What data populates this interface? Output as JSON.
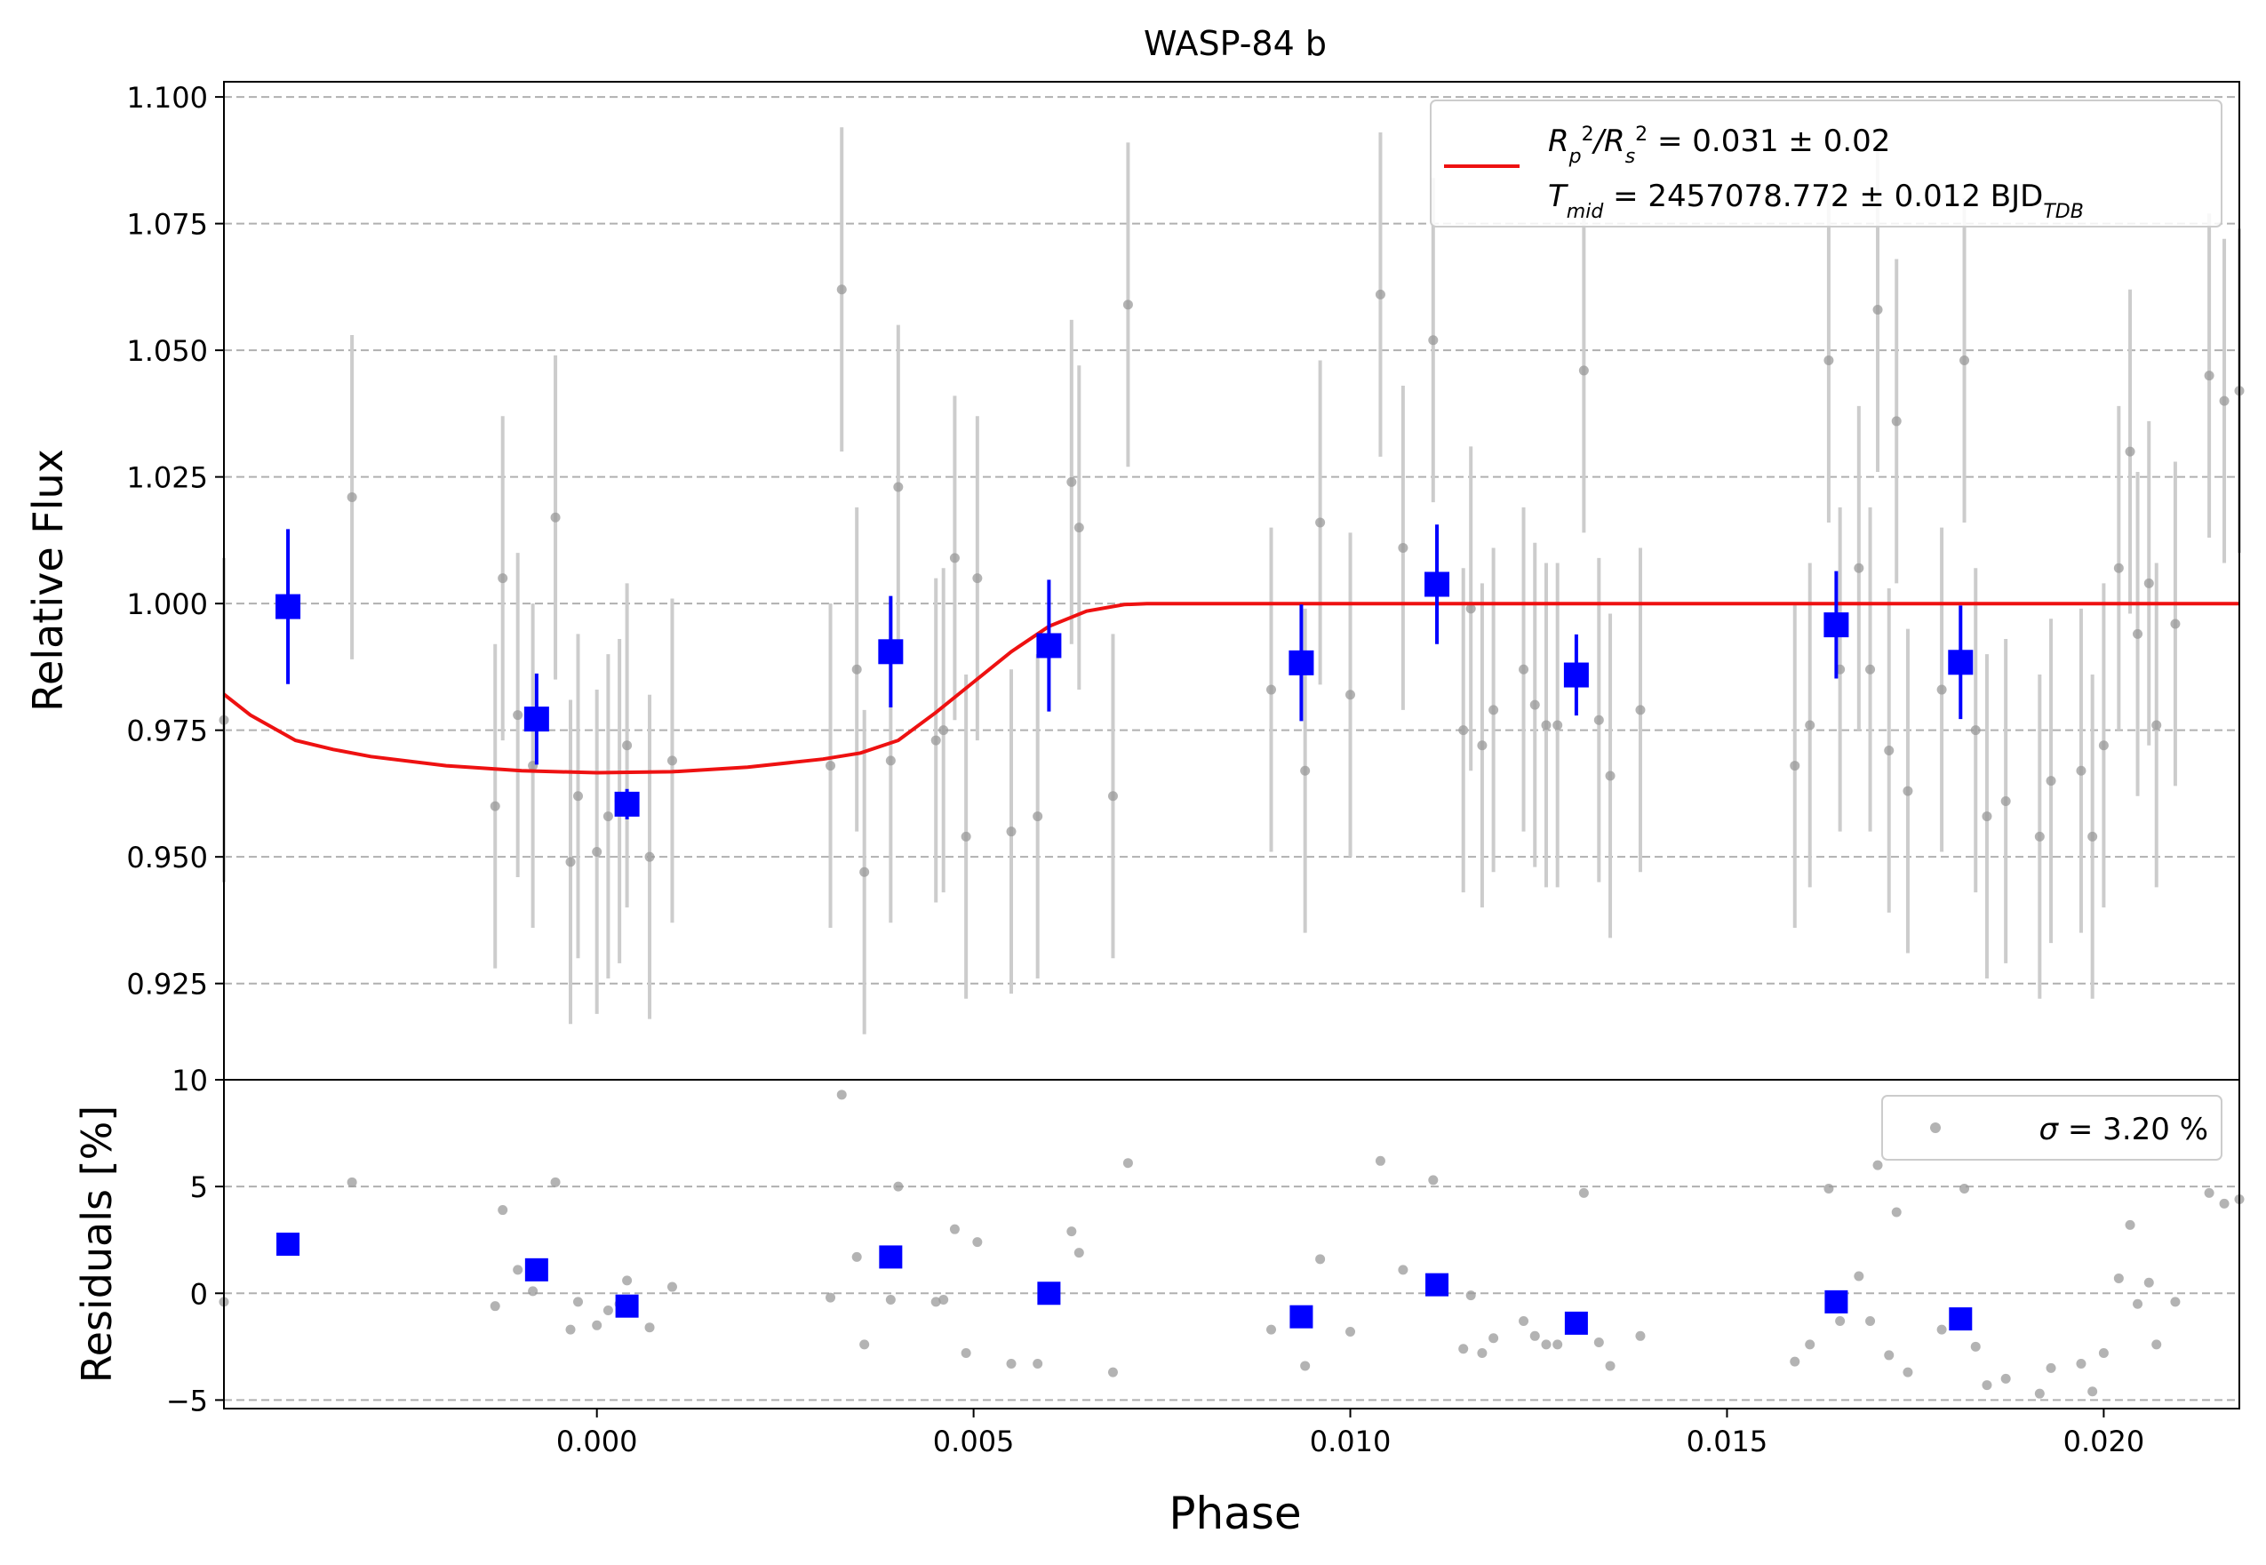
{
  "chart_data": {
    "type": "scatter",
    "title": "WASP-84 b",
    "xlabel": "Phase",
    "ylabel_top": "Relative Flux",
    "ylabel_bottom": "Residuals [%]",
    "xlim": [
      -0.00495,
      0.0218
    ],
    "ylim_top": [
      0.906,
      1.103
    ],
    "ylim_bottom": [
      -5.4,
      10
    ],
    "x_ticks": [
      0.0,
      0.005,
      0.01,
      0.015,
      0.02
    ],
    "x_tick_labels": [
      "0.000",
      "0.005",
      "0.010",
      "0.015",
      "0.020"
    ],
    "y_ticks_top": [
      0.925,
      0.95,
      0.975,
      1.0,
      1.025,
      1.05,
      1.075,
      1.1
    ],
    "y_tick_labels_top": [
      "0.925",
      "0.950",
      "0.975",
      "1.000",
      "1.025",
      "1.050",
      "1.075",
      "1.100"
    ],
    "y_ticks_bottom": [
      -5,
      0,
      5,
      10
    ],
    "y_tick_labels_bottom": [
      "−5",
      "0",
      "5",
      "10"
    ],
    "grid": "horizontal dashed",
    "legend_top": {
      "placement": "top-right",
      "line1": {
        "prefix": "R",
        "sub1": "p",
        "sup1": "2",
        "mid": "/R",
        "sub2": "s",
        "sup2": "2",
        "value": " = 0.031 ± 0.02"
      },
      "line2": {
        "prefix": "T",
        "sub": "mid",
        "value": " = 2457078.772 ± 0.012 BJD",
        "unit_sub": "TDB"
      }
    },
    "legend_bottom": {
      "placement": "top-right",
      "symbol": "σ",
      "text": " = 3.20 %"
    },
    "colors": {
      "model": "#ee1111",
      "binned": "#0000ff",
      "raw": "#999999",
      "errorbar": "#cccccc",
      "grid": "#b0b0b0"
    },
    "model_curve": {
      "x": [
        -0.00495,
        -0.0046,
        -0.004,
        -0.0035,
        -0.003,
        -0.002,
        -0.001,
        0.0,
        0.001,
        0.002,
        0.003,
        0.0035,
        0.004,
        0.0045,
        0.005,
        0.0055,
        0.006,
        0.0065,
        0.007,
        0.0073,
        0.008,
        0.01,
        0.015,
        0.0218
      ],
      "y": [
        0.9821,
        0.978,
        0.973,
        0.9712,
        0.9698,
        0.968,
        0.967,
        0.9666,
        0.9668,
        0.9677,
        0.9693,
        0.9705,
        0.973,
        0.9785,
        0.9845,
        0.9905,
        0.9955,
        0.9985,
        0.9998,
        1.0,
        1.0,
        1.0,
        1.0,
        1.0
      ]
    },
    "raw_points": [
      {
        "x": -0.00495,
        "y": 0.977,
        "err": 0.032,
        "res": -0.4
      },
      {
        "x": -0.00325,
        "y": 1.021,
        "err": 0.032,
        "res": 5.2
      },
      {
        "x": -0.00135,
        "y": 0.96,
        "err": 0.032,
        "res": -0.6
      },
      {
        "x": -0.00125,
        "y": 1.005,
        "err": 0.032,
        "res": 3.9
      },
      {
        "x": -0.00105,
        "y": 0.978,
        "err": 0.032,
        "res": 1.1
      },
      {
        "x": -0.00085,
        "y": 0.968,
        "err": 0.032,
        "res": 0.1
      },
      {
        "x": -0.00055,
        "y": 1.017,
        "err": 0.032,
        "res": 5.2
      },
      {
        "x": -0.00035,
        "y": 0.949,
        "err": 0.032,
        "res": -1.7
      },
      {
        "x": -0.00025,
        "y": 0.962,
        "err": 0.032,
        "res": -0.4
      },
      {
        "x": 0.0,
        "y": 0.951,
        "err": 0.032,
        "res": -1.5
      },
      {
        "x": 0.00015,
        "y": 0.958,
        "err": 0.032,
        "res": -0.8
      },
      {
        "x": 0.0003,
        "y": 0.961,
        "err": 0.032,
        "res": -0.5
      },
      {
        "x": 0.0004,
        "y": 0.972,
        "err": 0.032,
        "res": 0.6
      },
      {
        "x": 0.0007,
        "y": 0.95,
        "err": 0.032,
        "res": -1.6
      },
      {
        "x": 0.001,
        "y": 0.969,
        "err": 0.032,
        "res": 0.3
      },
      {
        "x": 0.0031,
        "y": 0.968,
        "err": 0.032,
        "res": -0.2
      },
      {
        "x": 0.00325,
        "y": 1.062,
        "err": 0.032,
        "res": 9.3
      },
      {
        "x": 0.00345,
        "y": 0.987,
        "err": 0.032,
        "res": 1.7
      },
      {
        "x": 0.00355,
        "y": 0.947,
        "err": 0.032,
        "res": -2.4
      },
      {
        "x": 0.0039,
        "y": 0.969,
        "err": 0.032,
        "res": -0.3
      },
      {
        "x": 0.004,
        "y": 1.023,
        "err": 0.032,
        "res": 5.0
      },
      {
        "x": 0.0045,
        "y": 0.973,
        "err": 0.032,
        "res": -0.4
      },
      {
        "x": 0.0046,
        "y": 0.975,
        "err": 0.032,
        "res": -0.3
      },
      {
        "x": 0.00475,
        "y": 1.009,
        "err": 0.032,
        "res": 3.0
      },
      {
        "x": 0.0049,
        "y": 0.954,
        "err": 0.032,
        "res": -2.8
      },
      {
        "x": 0.00505,
        "y": 1.005,
        "err": 0.032,
        "res": 2.4
      },
      {
        "x": 0.0055,
        "y": 0.955,
        "err": 0.032,
        "res": -3.3
      },
      {
        "x": 0.00585,
        "y": 0.958,
        "err": 0.032,
        "res": -3.3
      },
      {
        "x": 0.0063,
        "y": 1.024,
        "err": 0.032,
        "res": 2.9
      },
      {
        "x": 0.0064,
        "y": 1.015,
        "err": 0.032,
        "res": 1.9
      },
      {
        "x": 0.00685,
        "y": 0.962,
        "err": 0.032,
        "res": -3.7
      },
      {
        "x": 0.00705,
        "y": 1.059,
        "err": 0.032,
        "res": 6.1
      },
      {
        "x": 0.00895,
        "y": 0.983,
        "err": 0.032,
        "res": -1.7
      },
      {
        "x": 0.0094,
        "y": 0.967,
        "err": 0.032,
        "res": -3.4
      },
      {
        "x": 0.0096,
        "y": 1.016,
        "err": 0.032,
        "res": 1.6
      },
      {
        "x": 0.01,
        "y": 0.982,
        "err": 0.032,
        "res": -1.8
      },
      {
        "x": 0.0104,
        "y": 1.061,
        "err": 0.032,
        "res": 6.2
      },
      {
        "x": 0.0107,
        "y": 1.011,
        "err": 0.032,
        "res": 1.1
      },
      {
        "x": 0.0111,
        "y": 1.052,
        "err": 0.032,
        "res": 5.3
      },
      {
        "x": 0.0115,
        "y": 0.975,
        "err": 0.032,
        "res": -2.6
      },
      {
        "x": 0.0116,
        "y": 0.999,
        "err": 0.032,
        "res": -0.1
      },
      {
        "x": 0.01175,
        "y": 0.972,
        "err": 0.032,
        "res": -2.8
      },
      {
        "x": 0.0119,
        "y": 0.979,
        "err": 0.032,
        "res": -2.1
      },
      {
        "x": 0.0123,
        "y": 0.987,
        "err": 0.032,
        "res": -1.3
      },
      {
        "x": 0.01245,
        "y": 0.98,
        "err": 0.032,
        "res": -2.0
      },
      {
        "x": 0.0126,
        "y": 0.976,
        "err": 0.032,
        "res": -2.4
      },
      {
        "x": 0.01275,
        "y": 0.976,
        "err": 0.032,
        "res": -2.4
      },
      {
        "x": 0.0131,
        "y": 1.046,
        "err": 0.032,
        "res": 4.7
      },
      {
        "x": 0.0133,
        "y": 0.977,
        "err": 0.032,
        "res": -2.3
      },
      {
        "x": 0.01345,
        "y": 0.966,
        "err": 0.032,
        "res": -3.4
      },
      {
        "x": 0.01385,
        "y": 0.979,
        "err": 0.032,
        "res": -2.0
      },
      {
        "x": 0.0159,
        "y": 0.968,
        "err": 0.032,
        "res": -3.2
      },
      {
        "x": 0.0161,
        "y": 0.976,
        "err": 0.032,
        "res": -2.4
      },
      {
        "x": 0.01635,
        "y": 1.048,
        "err": 0.032,
        "res": 4.9
      },
      {
        "x": 0.0165,
        "y": 0.987,
        "err": 0.032,
        "res": -1.3
      },
      {
        "x": 0.01675,
        "y": 1.007,
        "err": 0.032,
        "res": 0.8
      },
      {
        "x": 0.0169,
        "y": 0.987,
        "err": 0.032,
        "res": -1.3
      },
      {
        "x": 0.017,
        "y": 1.058,
        "err": 0.032,
        "res": 6.0
      },
      {
        "x": 0.01715,
        "y": 0.971,
        "err": 0.032,
        "res": -2.9
      },
      {
        "x": 0.01725,
        "y": 1.036,
        "err": 0.032,
        "res": 3.8
      },
      {
        "x": 0.0174,
        "y": 0.963,
        "err": 0.032,
        "res": -3.7
      },
      {
        "x": 0.01785,
        "y": 0.983,
        "err": 0.032,
        "res": -1.7
      },
      {
        "x": 0.01815,
        "y": 1.048,
        "err": 0.032,
        "res": 4.9
      },
      {
        "x": 0.0183,
        "y": 0.975,
        "err": 0.032,
        "res": -2.5
      },
      {
        "x": 0.01845,
        "y": 0.958,
        "err": 0.032,
        "res": -4.3
      },
      {
        "x": 0.0187,
        "y": 0.961,
        "err": 0.032,
        "res": -4.0
      },
      {
        "x": 0.01915,
        "y": 0.954,
        "err": 0.032,
        "res": -4.7
      },
      {
        "x": 0.0193,
        "y": 0.965,
        "err": 0.032,
        "res": -3.5
      },
      {
        "x": 0.0197,
        "y": 0.967,
        "err": 0.032,
        "res": -3.3
      },
      {
        "x": 0.01985,
        "y": 0.954,
        "err": 0.032,
        "res": -4.6
      },
      {
        "x": 0.02,
        "y": 0.972,
        "err": 0.032,
        "res": -2.8
      },
      {
        "x": 0.0202,
        "y": 1.007,
        "err": 0.032,
        "res": 0.7
      },
      {
        "x": 0.02035,
        "y": 1.03,
        "err": 0.032,
        "res": 3.2
      },
      {
        "x": 0.02045,
        "y": 0.994,
        "err": 0.032,
        "res": -0.5
      },
      {
        "x": 0.0206,
        "y": 1.004,
        "err": 0.032,
        "res": 0.5
      },
      {
        "x": 0.0207,
        "y": 0.976,
        "err": 0.032,
        "res": -2.4
      },
      {
        "x": 0.02095,
        "y": 0.996,
        "err": 0.032,
        "res": -0.4
      },
      {
        "x": 0.0214,
        "y": 1.045,
        "err": 0.032,
        "res": 4.7
      },
      {
        "x": 0.0216,
        "y": 1.04,
        "err": 0.032,
        "res": 4.2
      },
      {
        "x": 0.0218,
        "y": 1.042,
        "err": 0.032,
        "res": 4.4
      }
    ],
    "binned_points": [
      {
        "x": -0.0041,
        "y": 0.9994,
        "err": 0.0153,
        "res": 2.3
      },
      {
        "x": -0.0008,
        "y": 0.9772,
        "err": 0.009,
        "res": 1.1
      },
      {
        "x": 0.0004,
        "y": 0.9604,
        "err": 0.003,
        "res": -0.6
      },
      {
        "x": 0.0039,
        "y": 0.9905,
        "err": 0.011,
        "res": 1.7
      },
      {
        "x": 0.006,
        "y": 0.9917,
        "err": 0.013,
        "res": 0.0
      },
      {
        "x": 0.00935,
        "y": 0.9883,
        "err": 0.0115,
        "res": -1.1
      },
      {
        "x": 0.01115,
        "y": 1.0038,
        "err": 0.0118,
        "res": 0.4
      },
      {
        "x": 0.013,
        "y": 0.9859,
        "err": 0.008,
        "res": -1.4
      },
      {
        "x": 0.01645,
        "y": 0.9958,
        "err": 0.0106,
        "res": -0.4
      },
      {
        "x": 0.0181,
        "y": 0.9884,
        "err": 0.0112,
        "res": -1.2
      }
    ]
  }
}
